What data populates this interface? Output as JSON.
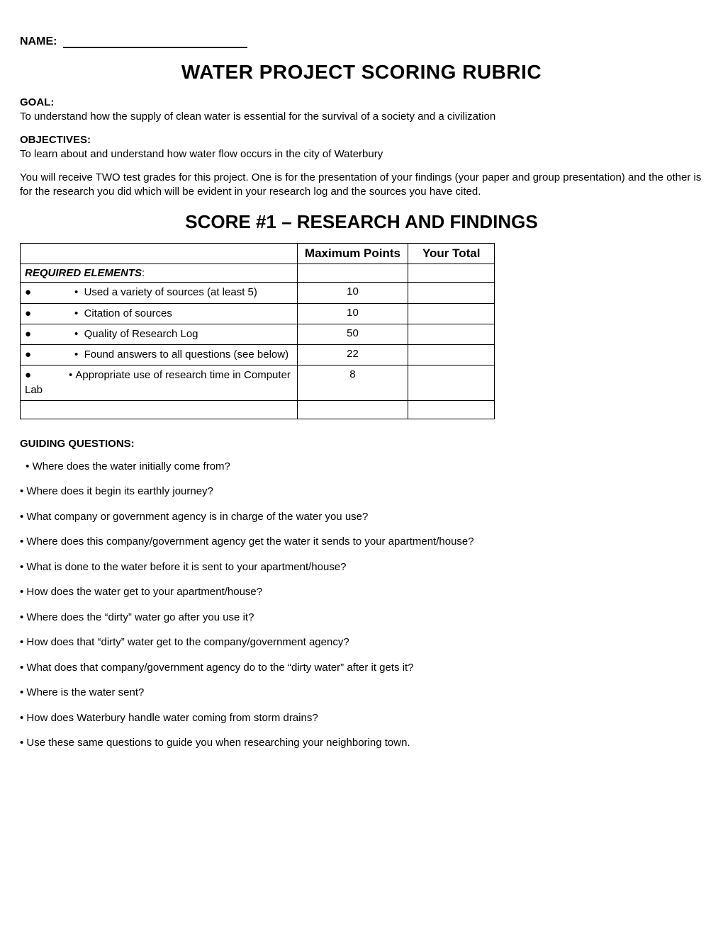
{
  "name_label": "NAME:",
  "title": "WATER PROJECT SCORING RUBRIC",
  "goal_label": "GOAL:",
  "goal_text": "To understand how the supply of clean water is essential for the survival of a society and a civilization",
  "objectives_label": "OBJECTIVES:",
  "objectives_text": "To learn about and understand how water flow occurs in the city of Waterbury",
  "grades_text": "You will receive TWO test grades for this project.  One is for the presentation of your findings (your paper and group presentation) and the other is for the research you did which will be evident in your research log and the sources you have cited.",
  "score1_heading": "SCORE #1 – RESEARCH AND FINDINGS",
  "table": {
    "col_max": "Maximum Points",
    "col_total": "Your Total",
    "required_elements": "REQUIRED ELEMENTS",
    "rows": [
      {
        "text": "Used a variety of sources (at least 5)",
        "points": "10"
      },
      {
        "text": "Citation of sources",
        "points": "10"
      },
      {
        "text": "Quality of Research Log",
        "points": "50"
      },
      {
        "text": "Found answers to all questions (see below)",
        "points": "22"
      },
      {
        "text": "Appropriate use of research time in Computer Lab",
        "points": "8",
        "wrap": true
      }
    ]
  },
  "guiding_label": "GUIDING QUESTIONS:",
  "questions": [
    "Where does the water initially come from?",
    "Where does it begin its earthly journey?",
    "What company or government agency is in charge of the water you use?",
    "Where does this company/government agency get the water it sends to your apartment/house?",
    "What is done to the water before it is sent to your apartment/house?",
    "How does the water get to your apartment/house?",
    "Where does the “dirty” water go after you use it?",
    "How does that “dirty” water get to the company/government agency?",
    "What does that company/government agency do to the “dirty water” after it gets it?",
    "Where is the water sent?",
    "How does Waterbury handle water coming from storm drains?",
    "Use these same questions to guide you when researching your neighboring town."
  ]
}
